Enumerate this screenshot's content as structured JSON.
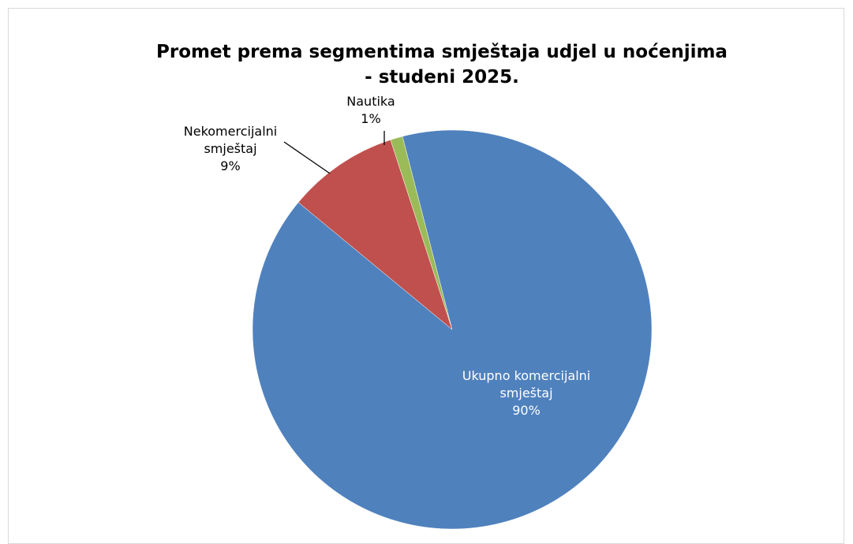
{
  "chart_data": {
    "type": "pie",
    "title": "Promet prema segmentima smještaja udjel u noćenjima - studeni 2025.",
    "categories": [
      "Ukupno komercijalni smještaj",
      "Nekomercijalni smještaj",
      "Nautika"
    ],
    "values": [
      90,
      9,
      1
    ],
    "value_labels": [
      "90%",
      "9%",
      "1%"
    ],
    "colors": [
      "#4f81bd",
      "#c0504d",
      "#9bbb59"
    ]
  }
}
